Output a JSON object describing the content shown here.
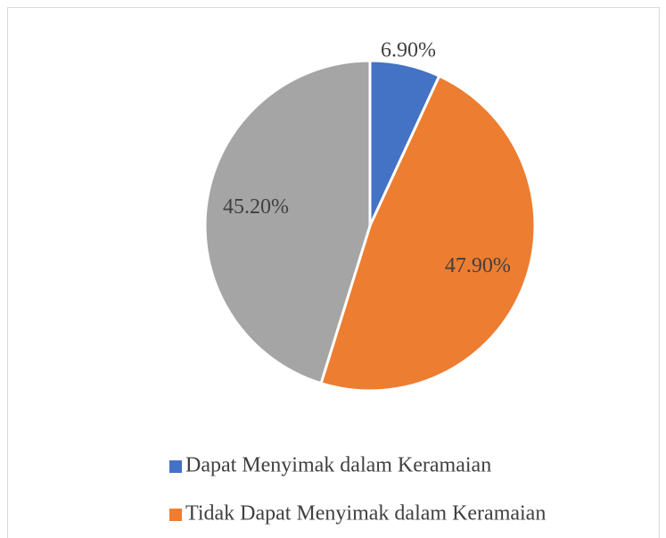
{
  "chart_data": {
    "type": "pie",
    "categories": [
      "Dapat Menyimak dalam Keramaian",
      "Tidak Dapat Menyimak dalam Keramaian",
      null
    ],
    "values": [
      6.9,
      47.9,
      45.2
    ],
    "value_labels": [
      "6.90%",
      "47.90%",
      "45.20%"
    ],
    "colors": [
      "#4472c4",
      "#ed7d31",
      "#a5a5a5"
    ],
    "legend": "bottom"
  }
}
